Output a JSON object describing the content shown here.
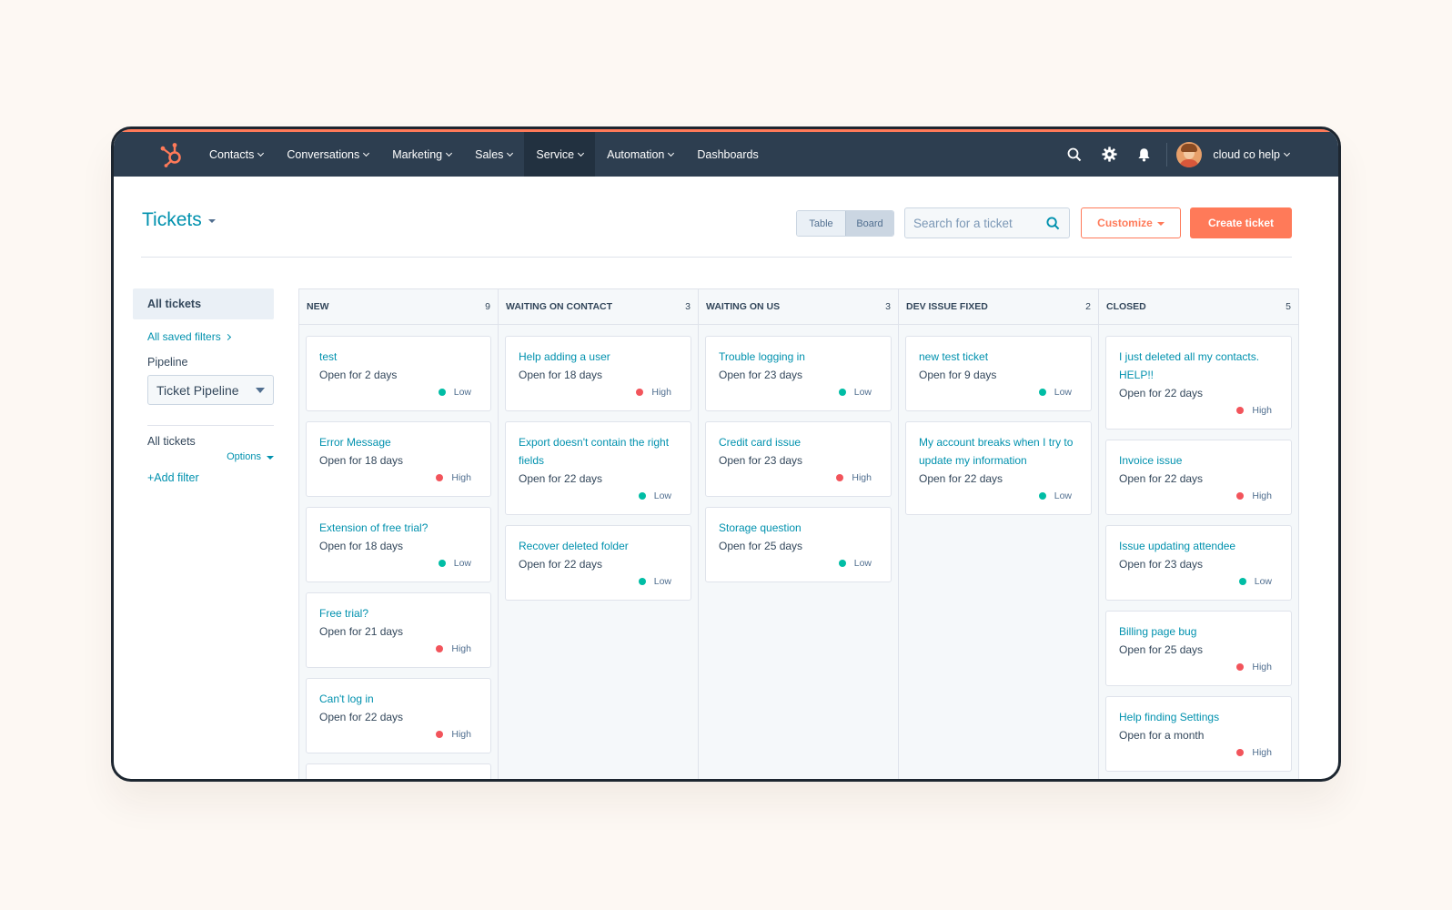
{
  "nav": {
    "items": [
      {
        "label": "Contacts",
        "dropdown": true
      },
      {
        "label": "Conversations",
        "dropdown": true
      },
      {
        "label": "Marketing",
        "dropdown": true
      },
      {
        "label": "Sales",
        "dropdown": true
      },
      {
        "label": "Service",
        "dropdown": true,
        "active": true
      },
      {
        "label": "Automation",
        "dropdown": true
      },
      {
        "label": "Dashboards",
        "dropdown": false
      }
    ],
    "account_label": "cloud co help"
  },
  "header": {
    "title": "Tickets",
    "view_toggle": {
      "table": "Table",
      "board": "Board",
      "selected": "Board"
    },
    "search_placeholder": "Search for a ticket",
    "customize_label": "Customize",
    "create_label": "Create ticket"
  },
  "sidebar": {
    "active_view": "All tickets",
    "saved_filters": "All saved filters",
    "pipeline_label": "Pipeline",
    "pipeline_value": "Ticket Pipeline",
    "filter_section": "All tickets",
    "options_label": "Options",
    "add_filter": "+Add filter"
  },
  "board": {
    "columns": [
      {
        "name": "NEW",
        "count": "9",
        "cards": [
          {
            "title": "test",
            "open": "Open for 2 days",
            "priority": "Low"
          },
          {
            "title": "Error Message",
            "open": "Open for 18 days",
            "priority": "High"
          },
          {
            "title": "Extension of free trial?",
            "open": "Open for 18 days",
            "priority": "Low"
          },
          {
            "title": "Free trial?",
            "open": "Open for 21 days",
            "priority": "High"
          },
          {
            "title": "Can't log in",
            "open": "Open for 22 days",
            "priority": "High"
          }
        ],
        "has_more": true
      },
      {
        "name": "WAITING ON CONTACT",
        "count": "3",
        "cards": [
          {
            "title": "Help adding a user",
            "open": "Open for 18 days",
            "priority": "High"
          },
          {
            "title": "Export doesn't contain the right fields",
            "open": "Open for 22 days",
            "priority": "Low"
          },
          {
            "title": "Recover deleted folder",
            "open": "Open for 22 days",
            "priority": "Low"
          }
        ]
      },
      {
        "name": "WAITING ON US",
        "count": "3",
        "cards": [
          {
            "title": "Trouble logging in",
            "open": "Open for 23 days",
            "priority": "Low"
          },
          {
            "title": "Credit card issue",
            "open": "Open for 23 days",
            "priority": "High"
          },
          {
            "title": "Storage question",
            "open": "Open for 25 days",
            "priority": "Low"
          }
        ]
      },
      {
        "name": "DEV ISSUE FIXED",
        "count": "2",
        "cards": [
          {
            "title": "new test ticket",
            "open": "Open for 9 days",
            "priority": "Low"
          },
          {
            "title": "My account breaks when I try to update my information",
            "open": "Open for 22 days",
            "priority": "Low"
          }
        ]
      },
      {
        "name": "CLOSED",
        "count": "5",
        "cards": [
          {
            "title": "I just deleted all my contacts. HELP!!",
            "open": "Open for 22 days",
            "priority": "High"
          },
          {
            "title": "Invoice issue",
            "open": "Open for 22 days",
            "priority": "High"
          },
          {
            "title": "Issue updating attendee",
            "open": "Open for 23 days",
            "priority": "Low"
          },
          {
            "title": "Billing page bug",
            "open": "Open for 25 days",
            "priority": "High"
          },
          {
            "title": "Help finding Settings",
            "open": "Open for a month",
            "priority": "High"
          }
        ]
      }
    ]
  },
  "colors": {
    "brand_orange": "#ff7a59",
    "nav_bg": "#2d3e50",
    "link": "#0091ae",
    "low": "#00bda5",
    "high": "#f2545b"
  },
  "icons": {
    "logo": "hubspot-sprocket-icon",
    "search": "search-icon",
    "settings": "gear-icon",
    "notifications": "bell-icon"
  }
}
